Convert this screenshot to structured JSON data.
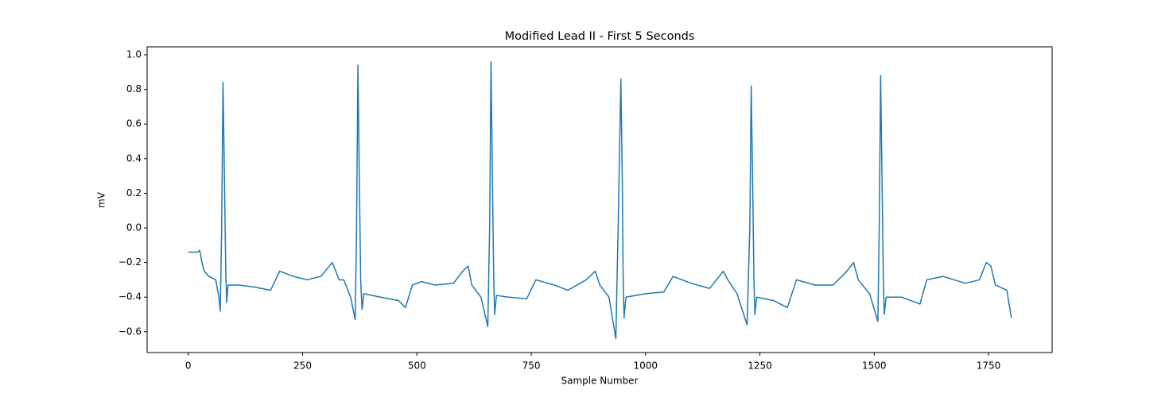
{
  "chart_data": {
    "type": "line",
    "title": "Modified Lead II - First 5 Seconds",
    "x_label": "Sample Number",
    "y_label": "mV",
    "color": "#1f77b4",
    "x": [
      0,
      10,
      20,
      25,
      30,
      35,
      45,
      60,
      67,
      70,
      73,
      76,
      79,
      82,
      84,
      87,
      110,
      140,
      180,
      200,
      230,
      260,
      290,
      315,
      330,
      340,
      355,
      365,
      368,
      371,
      374,
      377,
      380,
      384,
      420,
      460,
      475,
      490,
      510,
      540,
      580,
      600,
      612,
      620,
      640,
      655,
      659,
      662,
      665,
      668,
      670,
      674,
      700,
      740,
      760,
      800,
      830,
      870,
      890,
      900,
      920,
      935,
      940,
      946,
      949,
      951,
      953,
      957,
      1000,
      1040,
      1060,
      1100,
      1140,
      1170,
      1180,
      1200,
      1222,
      1228,
      1231,
      1234,
      1237,
      1239,
      1243,
      1280,
      1310,
      1330,
      1370,
      1410,
      1440,
      1455,
      1465,
      1490,
      1508,
      1511,
      1514,
      1517,
      1520,
      1522,
      1526,
      1560,
      1600,
      1615,
      1650,
      1700,
      1730,
      1745,
      1755,
      1765,
      1790,
      1800
    ],
    "values": [
      -0.14,
      -0.14,
      -0.14,
      -0.13,
      -0.2,
      -0.25,
      -0.28,
      -0.3,
      -0.4,
      -0.48,
      0.0,
      0.84,
      0.3,
      -0.25,
      -0.43,
      -0.33,
      -0.33,
      -0.34,
      -0.36,
      -0.25,
      -0.28,
      -0.3,
      -0.28,
      -0.2,
      -0.3,
      -0.3,
      -0.4,
      -0.53,
      0.0,
      0.94,
      0.3,
      -0.3,
      -0.47,
      -0.38,
      -0.4,
      -0.42,
      -0.46,
      -0.33,
      -0.31,
      -0.33,
      -0.32,
      -0.25,
      -0.22,
      -0.33,
      -0.4,
      -0.57,
      0.0,
      0.96,
      0.3,
      -0.3,
      -0.5,
      -0.39,
      -0.4,
      -0.41,
      -0.3,
      -0.33,
      -0.36,
      -0.3,
      -0.25,
      -0.33,
      -0.4,
      -0.64,
      0.0,
      0.86,
      0.3,
      -0.3,
      -0.52,
      -0.4,
      -0.38,
      -0.37,
      -0.28,
      -0.32,
      -0.35,
      -0.25,
      -0.3,
      -0.38,
      -0.56,
      0.0,
      0.82,
      0.3,
      -0.3,
      -0.5,
      -0.4,
      -0.42,
      -0.46,
      -0.3,
      -0.33,
      -0.33,
      -0.25,
      -0.2,
      -0.3,
      -0.38,
      -0.54,
      0.0,
      0.88,
      0.3,
      -0.3,
      -0.5,
      -0.4,
      -0.4,
      -0.44,
      -0.3,
      -0.28,
      -0.32,
      -0.3,
      -0.2,
      -0.22,
      -0.33,
      -0.36,
      -0.52
    ],
    "xlim": [
      -90,
      1889
    ],
    "ylim": [
      -0.72,
      1.046
    ],
    "xticks": [
      0,
      250,
      500,
      750,
      1000,
      1250,
      1500,
      1750
    ],
    "yticks": [
      {
        "value": -0.6,
        "label": "−0.6"
      },
      {
        "value": -0.4,
        "label": "−0.4"
      },
      {
        "value": -0.2,
        "label": "−0.2"
      },
      {
        "value": 0.0,
        "label": "0.0"
      },
      {
        "value": 0.2,
        "label": "0.2"
      },
      {
        "value": 0.4,
        "label": "0.4"
      },
      {
        "value": 0.6,
        "label": "0.6"
      },
      {
        "value": 0.8,
        "label": "0.8"
      },
      {
        "value": 1.0,
        "label": "1.0"
      }
    ]
  }
}
